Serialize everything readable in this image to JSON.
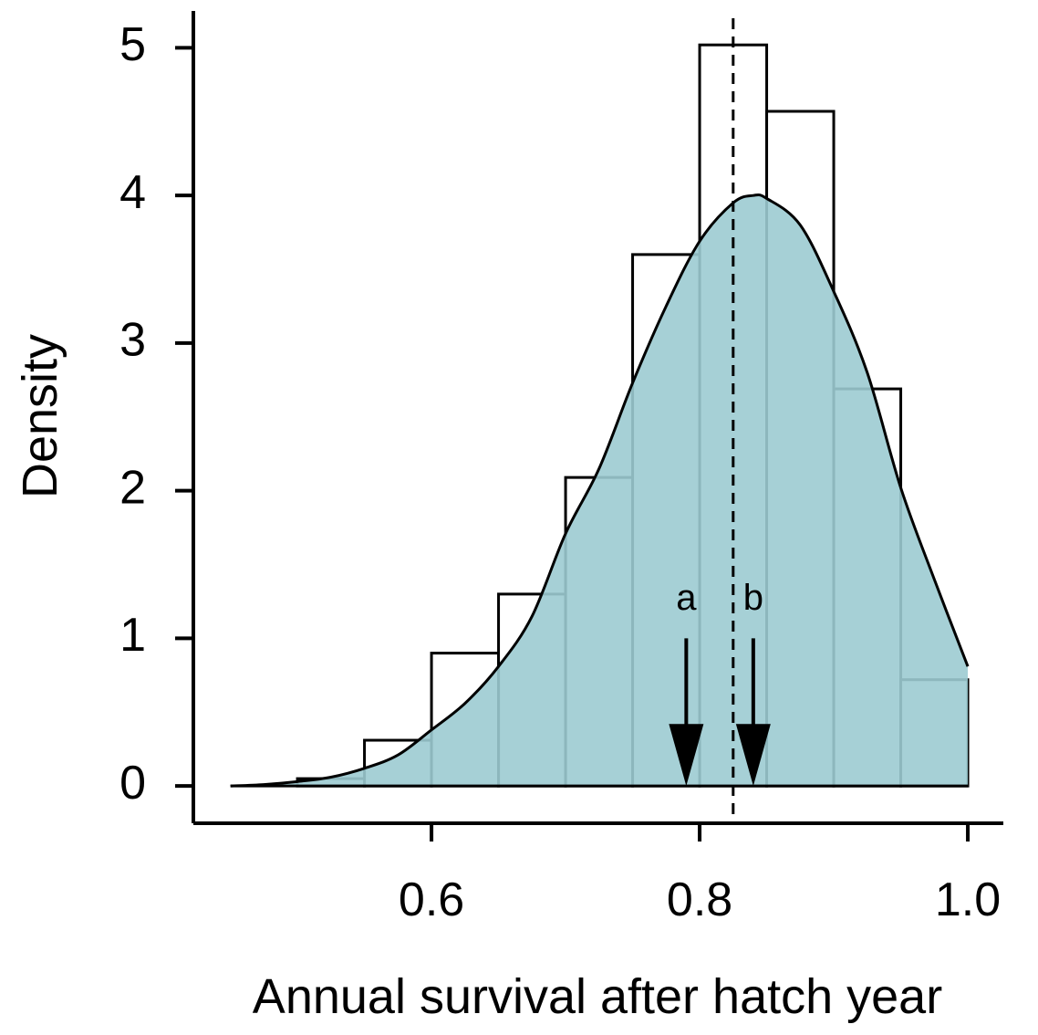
{
  "chart_data": {
    "type": "histogram",
    "xlabel": "Annual survival after hatch year",
    "ylabel": "Density",
    "bins": [
      0.5,
      0.55,
      0.6,
      0.65,
      0.7,
      0.75,
      0.8,
      0.85,
      0.9,
      0.95,
      1.0
    ],
    "counts": [
      0.05,
      0.31,
      0.9,
      1.3,
      2.09,
      3.6,
      5.02,
      4.57,
      2.69,
      0.72
    ],
    "density": {
      "color": "#9ccbd2",
      "x": [
        0.45,
        0.475,
        0.5,
        0.525,
        0.55,
        0.575,
        0.6,
        0.625,
        0.65,
        0.675,
        0.7,
        0.725,
        0.75,
        0.775,
        0.8,
        0.825,
        0.84,
        0.85,
        0.875,
        0.9,
        0.925,
        0.95,
        0.975,
        1.0
      ],
      "y": [
        0,
        0.01,
        0.03,
        0.06,
        0.12,
        0.21,
        0.38,
        0.56,
        0.81,
        1.15,
        1.71,
        2.15,
        2.73,
        3.25,
        3.69,
        3.95,
        4.0,
        3.98,
        3.8,
        3.35,
        2.8,
        2.02,
        1.4,
        0.81
      ]
    },
    "vline": 0.825,
    "annotations": [
      {
        "label": "a",
        "x": 0.79
      },
      {
        "label": "b",
        "x": 0.84
      }
    ],
    "xlim": [
      0.4224,
      1.0265
    ],
    "ylim": [
      -0.24,
      5.25
    ],
    "xticks": [
      0.6,
      0.8,
      {
        "value": 1,
        "label": "1.0"
      }
    ],
    "yticks": [
      0,
      1,
      2,
      3,
      4,
      5
    ]
  }
}
